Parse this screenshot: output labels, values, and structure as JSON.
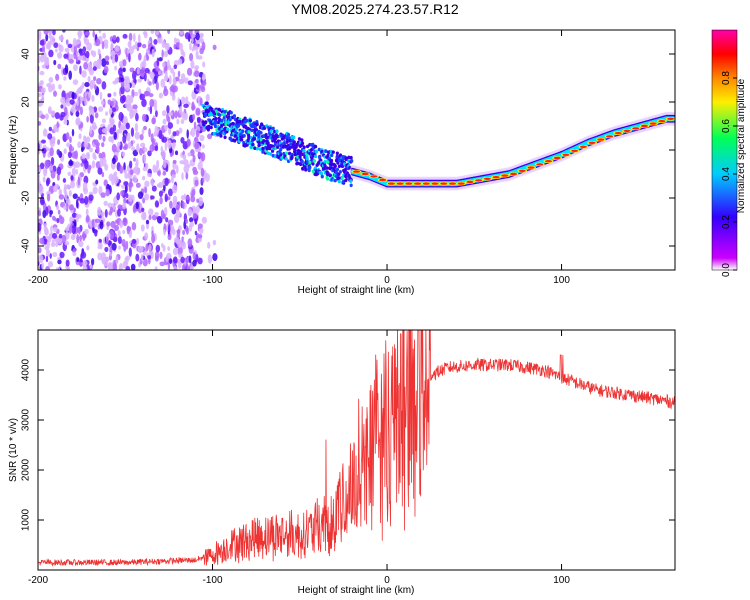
{
  "title": "YM08.2025.274.23.57.R12",
  "colors": {
    "snr_line": "#ee3333",
    "axis": "#000000",
    "background": "#ffffff"
  },
  "chart_data": [
    {
      "type": "heatmap",
      "name": "spectrogram",
      "xlabel": "Height of straight line (km)",
      "ylabel": "Frequency (Hz)",
      "xlim": [
        -200,
        165
      ],
      "ylim": [
        -50,
        50
      ],
      "xticks": [
        -200,
        -100,
        0,
        100
      ],
      "yticks": [
        -40,
        -20,
        0,
        20,
        40
      ],
      "tick_labels_x": [
        "-200",
        "-100",
        "0",
        "100"
      ],
      "tick_labels_y": [
        "-40",
        "-20",
        "0",
        "20",
        "40"
      ],
      "noise_region_x": [
        -200,
        -105
      ],
      "frequency_track": {
        "x": [
          -105,
          -90,
          -75,
          -60,
          -45,
          -30,
          -20,
          -10,
          0,
          20,
          40,
          55,
          70,
          85,
          100,
          115,
          130,
          145,
          160,
          165
        ],
        "y": [
          14,
          10,
          6,
          2,
          -3,
          -7,
          -9,
          -11,
          -14,
          -14,
          -14,
          -12,
          -10,
          -6,
          -2,
          3,
          7,
          10,
          13,
          13
        ]
      },
      "colorbar": {
        "label": "Normalized spectral amplitude",
        "range": [
          0,
          1
        ],
        "ticks": [
          0.0,
          0.2,
          0.4,
          0.6,
          0.8
        ],
        "tick_labels": [
          "0.0",
          "0.2",
          "0.4",
          "0.6",
          "0.8"
        ],
        "colormap": [
          "#ffffff",
          "#cc00ff",
          "#3300ff",
          "#00ccff",
          "#00ff55",
          "#ffee00",
          "#ff8800",
          "#ff0000",
          "#ff00aa"
        ]
      }
    },
    {
      "type": "line",
      "name": "snr",
      "xlabel": "Height of straight line (km)",
      "ylabel": "SNR (10 * v/v)",
      "xlim": [
        -200,
        165
      ],
      "ylim": [
        0,
        4800
      ],
      "xticks": [
        -200,
        -100,
        0,
        100
      ],
      "yticks": [
        1000,
        2000,
        3000,
        4000
      ],
      "tick_labels_x": [
        "-200",
        "-100",
        "0",
        "100"
      ],
      "tick_labels_y": [
        "1000",
        "2000",
        "3000",
        "4000"
      ],
      "envelope": {
        "x": [
          -200,
          -150,
          -110,
          -100,
          -90,
          -70,
          -50,
          -35,
          -25,
          -15,
          -5,
          5,
          15,
          25,
          35,
          50,
          70,
          90,
          100,
          120,
          140,
          165
        ],
        "y": [
          150,
          150,
          200,
          300,
          500,
          700,
          700,
          900,
          1300,
          2000,
          2600,
          3000,
          3500,
          3900,
          4050,
          4100,
          4100,
          4000,
          3850,
          3600,
          3500,
          3350
        ]
      }
    }
  ]
}
